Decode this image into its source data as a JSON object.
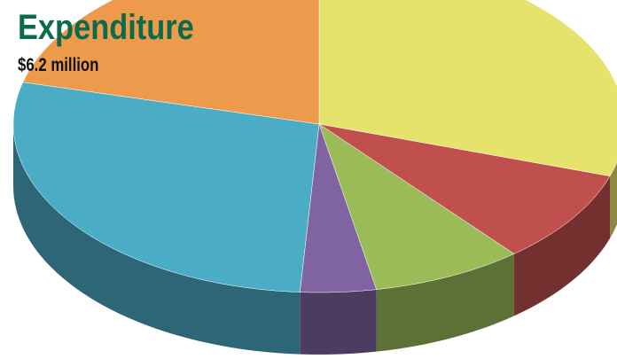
{
  "chart_data": {
    "type": "pie",
    "title": "Expenditure",
    "subtitle": "$6.2 million",
    "values": [
      30,
      9,
      8,
      4,
      28,
      21
    ],
    "colors": [
      "#e6e36c",
      "#c0504d",
      "#9bbb59",
      "#8064a2",
      "#4bacc6",
      "#ee9a4c"
    ]
  }
}
